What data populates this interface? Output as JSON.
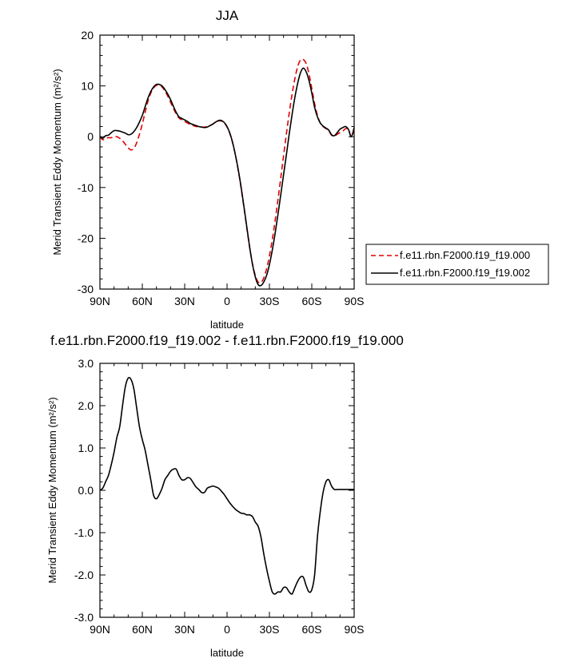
{
  "chart_data": [
    {
      "type": "line",
      "title": "JJA",
      "xlabel": "latitude",
      "ylabel": "Merid Transient Eddy Momentum (m²/s²)",
      "xlim": [
        90,
        -90
      ],
      "ylim": [
        -30,
        20
      ],
      "x_ticks": [
        {
          "value": 90,
          "label": "90N"
        },
        {
          "value": 60,
          "label": "60N"
        },
        {
          "value": 30,
          "label": "30N"
        },
        {
          "value": 0,
          "label": "0"
        },
        {
          "value": -30,
          "label": "30S"
        },
        {
          "value": -60,
          "label": "60S"
        },
        {
          "value": -90,
          "label": "90S"
        }
      ],
      "y_ticks": [
        {
          "value": 20,
          "label": "20"
        },
        {
          "value": 10,
          "label": "10"
        },
        {
          "value": 0,
          "label": "0"
        },
        {
          "value": -10,
          "label": "-10"
        },
        {
          "value": -20,
          "label": "-20"
        },
        {
          "value": -30,
          "label": "-30"
        }
      ],
      "legend": {
        "placement": "right"
      },
      "series": [
        {
          "name": "f.e11.rbn.F2000.f19_f19.000",
          "color": "#e00000",
          "dash": true,
          "x": [
            90,
            88,
            86,
            84,
            82,
            80,
            78,
            76,
            74,
            72,
            70,
            68,
            66,
            64,
            62,
            60,
            58,
            56,
            54,
            52,
            50,
            48,
            46,
            44,
            42,
            40,
            38,
            36,
            34,
            32,
            30,
            28,
            26,
            24,
            22,
            20,
            18,
            16,
            14,
            12,
            10,
            8,
            6,
            4,
            2,
            0,
            -2,
            -4,
            -6,
            -8,
            -10,
            -12,
            -14,
            -16,
            -18,
            -20,
            -22,
            -24,
            -26,
            -28,
            -30,
            -32,
            -34,
            -36,
            -38,
            -40,
            -42,
            -44,
            -46,
            -48,
            -50,
            -52,
            -54,
            -56,
            -58,
            -60,
            -62,
            -64,
            -66,
            -68,
            -70,
            -72,
            -74,
            -76,
            -78,
            -80,
            -82,
            -84,
            -86,
            -88,
            -90
          ],
          "values": [
            0,
            -0.6,
            -0.3,
            -0.2,
            -0.2,
            0,
            0,
            -0.3,
            -0.8,
            -1.5,
            -2.2,
            -2.6,
            -2.3,
            -1.2,
            0.5,
            2.5,
            4.8,
            7,
            8.6,
            9.6,
            10.1,
            10.2,
            9.8,
            9,
            8,
            6.8,
            5.6,
            4.5,
            3.7,
            3.3,
            3,
            2.7,
            2.4,
            2.2,
            2,
            2,
            1.9,
            1.9,
            2,
            2.2,
            2.5,
            2.9,
            3.1,
            3.1,
            2.7,
            1.9,
            0.6,
            -1.3,
            -3.7,
            -6.7,
            -10.2,
            -14,
            -18,
            -21.8,
            -25,
            -27.3,
            -28.6,
            -28.7,
            -27.8,
            -26,
            -23.5,
            -20.3,
            -16.6,
            -12.5,
            -8.2,
            -3.8,
            0.5,
            4.6,
            8.3,
            11.4,
            13.8,
            15.1,
            15.2,
            14.4,
            12.4,
            9.5,
            6.5,
            4.2,
            2.7,
            2,
            1.6,
            1.2,
            0.3,
            0.1,
            0.5,
            0.8,
            1.1,
            1.6,
            1.4,
            0,
            1.5
          ]
        },
        {
          "name": "f.e11.rbn.F2000.f19_f19.002",
          "color": "#000000",
          "dash": false,
          "x": [
            90,
            88,
            86,
            84,
            82,
            80,
            78,
            76,
            74,
            72,
            70,
            68,
            66,
            64,
            62,
            60,
            58,
            56,
            54,
            52,
            50,
            48,
            46,
            44,
            42,
            40,
            38,
            36,
            34,
            32,
            30,
            28,
            26,
            24,
            22,
            20,
            18,
            16,
            14,
            12,
            10,
            8,
            6,
            4,
            2,
            0,
            -2,
            -4,
            -6,
            -8,
            -10,
            -12,
            -14,
            -16,
            -18,
            -20,
            -22,
            -24,
            -26,
            -28,
            -30,
            -32,
            -34,
            -36,
            -38,
            -40,
            -42,
            -44,
            -46,
            -48,
            -50,
            -52,
            -54,
            -56,
            -58,
            -60,
            -62,
            -64,
            -66,
            -68,
            -70,
            -72,
            -74,
            -76,
            -78,
            -80,
            -82,
            -84,
            -86,
            -88,
            -90
          ],
          "values": [
            0,
            -0.3,
            0.2,
            0.3,
            0.8,
            1.2,
            1.2,
            1.1,
            0.9,
            0.7,
            0.4,
            0.5,
            1,
            1.8,
            2.9,
            4.2,
            5.9,
            7.6,
            8.9,
            9.8,
            10.3,
            10.3,
            10,
            9.3,
            8.4,
            7.3,
            6,
            4.8,
            3.9,
            3.6,
            3.3,
            3,
            2.6,
            2.4,
            2.2,
            2,
            1.9,
            1.8,
            1.9,
            2.2,
            2.5,
            2.9,
            3.2,
            3.2,
            2.8,
            2,
            0.7,
            -1.2,
            -3.7,
            -6.6,
            -10,
            -13.8,
            -17.8,
            -21.7,
            -25.1,
            -27.6,
            -29.1,
            -29.3,
            -28.6,
            -27.3,
            -25.2,
            -22.4,
            -19.1,
            -15.4,
            -11.5,
            -7.5,
            -3.6,
            0.5,
            4.3,
            7.7,
            10.5,
            12.6,
            13.5,
            12.8,
            11.1,
            8.6,
            5.8,
            3.9,
            2.7,
            2.1,
            1.7,
            1.3,
            0.4,
            0.2,
            0.8,
            1.5,
            1.8,
            2,
            1.4,
            0,
            1.8
          ]
        }
      ]
    },
    {
      "type": "line",
      "title": "f.e11.rbn.F2000.f19_f19.002 - f.e11.rbn.F2000.f19_f19.000",
      "xlabel": "latitude",
      "ylabel": "Merid Transient Eddy Momentum (m²/s²)",
      "xlim": [
        90,
        -90
      ],
      "ylim": [
        -3,
        3
      ],
      "x_ticks": [
        {
          "value": 90,
          "label": "90N"
        },
        {
          "value": 60,
          "label": "60N"
        },
        {
          "value": 30,
          "label": "30N"
        },
        {
          "value": 0,
          "label": "0"
        },
        {
          "value": -30,
          "label": "30S"
        },
        {
          "value": -60,
          "label": "60S"
        },
        {
          "value": -90,
          "label": "90S"
        }
      ],
      "y_ticks": [
        {
          "value": 3,
          "label": "3.0"
        },
        {
          "value": 2,
          "label": "2.0"
        },
        {
          "value": 1,
          "label": "1.0"
        },
        {
          "value": 0,
          "label": "0.0"
        },
        {
          "value": -1,
          "label": "-1.0"
        },
        {
          "value": -2,
          "label": "-2.0"
        },
        {
          "value": -3,
          "label": "-3.0"
        }
      ],
      "series": [
        {
          "color": "#000000",
          "dash": false,
          "x": [
            90,
            88,
            86,
            84,
            82,
            80,
            78,
            76,
            74,
            72,
            70,
            68,
            66,
            64,
            62,
            60,
            58,
            56,
            54,
            52,
            50,
            48,
            46,
            44,
            42,
            40,
            38,
            36,
            34,
            32,
            30,
            28,
            26,
            24,
            22,
            20,
            18,
            16,
            14,
            12,
            10,
            8,
            6,
            4,
            2,
            0,
            -2,
            -4,
            -6,
            -8,
            -10,
            -12,
            -14,
            -16,
            -18,
            -20,
            -22,
            -24,
            -26,
            -28,
            -30,
            -32,
            -34,
            -36,
            -38,
            -40,
            -42,
            -44,
            -46,
            -48,
            -50,
            -52,
            -54,
            -56,
            -58,
            -60,
            -62,
            -64,
            -66,
            -68,
            -70,
            -72,
            -74,
            -76,
            -78,
            -80,
            -82,
            -84,
            -86,
            -88,
            -90
          ],
          "values": [
            0,
            0.05,
            0.2,
            0.35,
            0.6,
            0.9,
            1.25,
            1.5,
            2,
            2.45,
            2.65,
            2.62,
            2.4,
            1.95,
            1.5,
            1.2,
            0.95,
            0.6,
            0.25,
            -0.12,
            -0.2,
            -0.1,
            0.05,
            0.25,
            0.35,
            0.45,
            0.5,
            0.5,
            0.35,
            0.25,
            0.25,
            0.3,
            0.28,
            0.18,
            0.08,
            0.02,
            -0.05,
            -0.05,
            0.05,
            0.08,
            0.1,
            0.08,
            0.05,
            -0.02,
            -0.1,
            -0.2,
            -0.3,
            -0.38,
            -0.45,
            -0.5,
            -0.54,
            -0.55,
            -0.58,
            -0.58,
            -0.62,
            -0.75,
            -0.85,
            -1.1,
            -1.5,
            -1.85,
            -2.15,
            -2.4,
            -2.45,
            -2.4,
            -2.4,
            -2.3,
            -2.3,
            -2.4,
            -2.45,
            -2.3,
            -2.15,
            -2.05,
            -2.05,
            -2.25,
            -2.4,
            -2.35,
            -2,
            -1.1,
            -0.5,
            -0.05,
            0.2,
            0.25,
            0.1,
            0.02,
            0.02,
            0.02,
            0.02,
            0.02,
            0.02,
            0.02,
            0.02
          ]
        }
      ]
    }
  ]
}
